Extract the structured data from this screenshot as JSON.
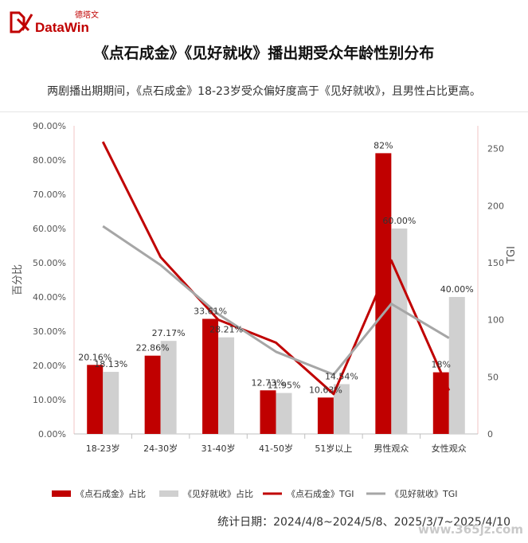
{
  "brand": {
    "name": "DataWin",
    "cn": "德塔文",
    "accent": "#c00000"
  },
  "title": "《点石成金》《见好就收》播出期受众年龄性别分布",
  "subtitle": "两剧播出期期间，《点石成金》18-23岁受众偏好度高于《见好就收》，且男性占比更高。",
  "footer": "统计日期：2024/4/8~2024/5/8、2025/3/7~2025/4/10",
  "watermark": "www.365jz.com",
  "chart_data": {
    "type": "bar",
    "categories": [
      "18-23岁",
      "24-30岁",
      "31-40岁",
      "41-50岁",
      "51岁以上",
      "男性观众",
      "女性观众"
    ],
    "ylabel": "百分比",
    "y2label": "TGI",
    "ylim": [
      0,
      90
    ],
    "y2lim": [
      0,
      270
    ],
    "yticks": [
      "0.00%",
      "10.00%",
      "20.00%",
      "30.00%",
      "40.00%",
      "50.00%",
      "60.00%",
      "70.00%",
      "80.00%",
      "90.00%"
    ],
    "y2ticks": [
      "0",
      "50",
      "100",
      "150",
      "200",
      "250"
    ],
    "colors": {
      "a_bar": "#c00000",
      "b_bar": "#d0d0d0",
      "a_line": "#c00000",
      "b_line": "#a6a6a6"
    },
    "bar_series": [
      {
        "name": "《点石成金》占比",
        "values": [
          20.16,
          22.86,
          33.61,
          12.73,
          10.63,
          82,
          18
        ],
        "labels": [
          "20.16%",
          "22.86%",
          "33.61%",
          "12.73%",
          "10.63%",
          "82%",
          "18%"
        ]
      },
      {
        "name": "《见好就收》占比",
        "values": [
          18.13,
          27.17,
          28.21,
          11.95,
          14.54,
          60.0,
          40.0
        ],
        "labels": [
          "18.13%",
          "27.17%",
          "28.21%",
          "11.95%",
          "14.54%",
          "60.00%",
          "40.00%"
        ]
      }
    ],
    "line_series": [
      {
        "name": "《点石成金》TGI",
        "values": [
          256,
          155,
          100,
          80,
          35,
          152,
          38
        ]
      },
      {
        "name": "《见好就收》TGI",
        "values": [
          182,
          148,
          105,
          72,
          52,
          114,
          84
        ]
      }
    ],
    "legend_position": "bottom"
  }
}
